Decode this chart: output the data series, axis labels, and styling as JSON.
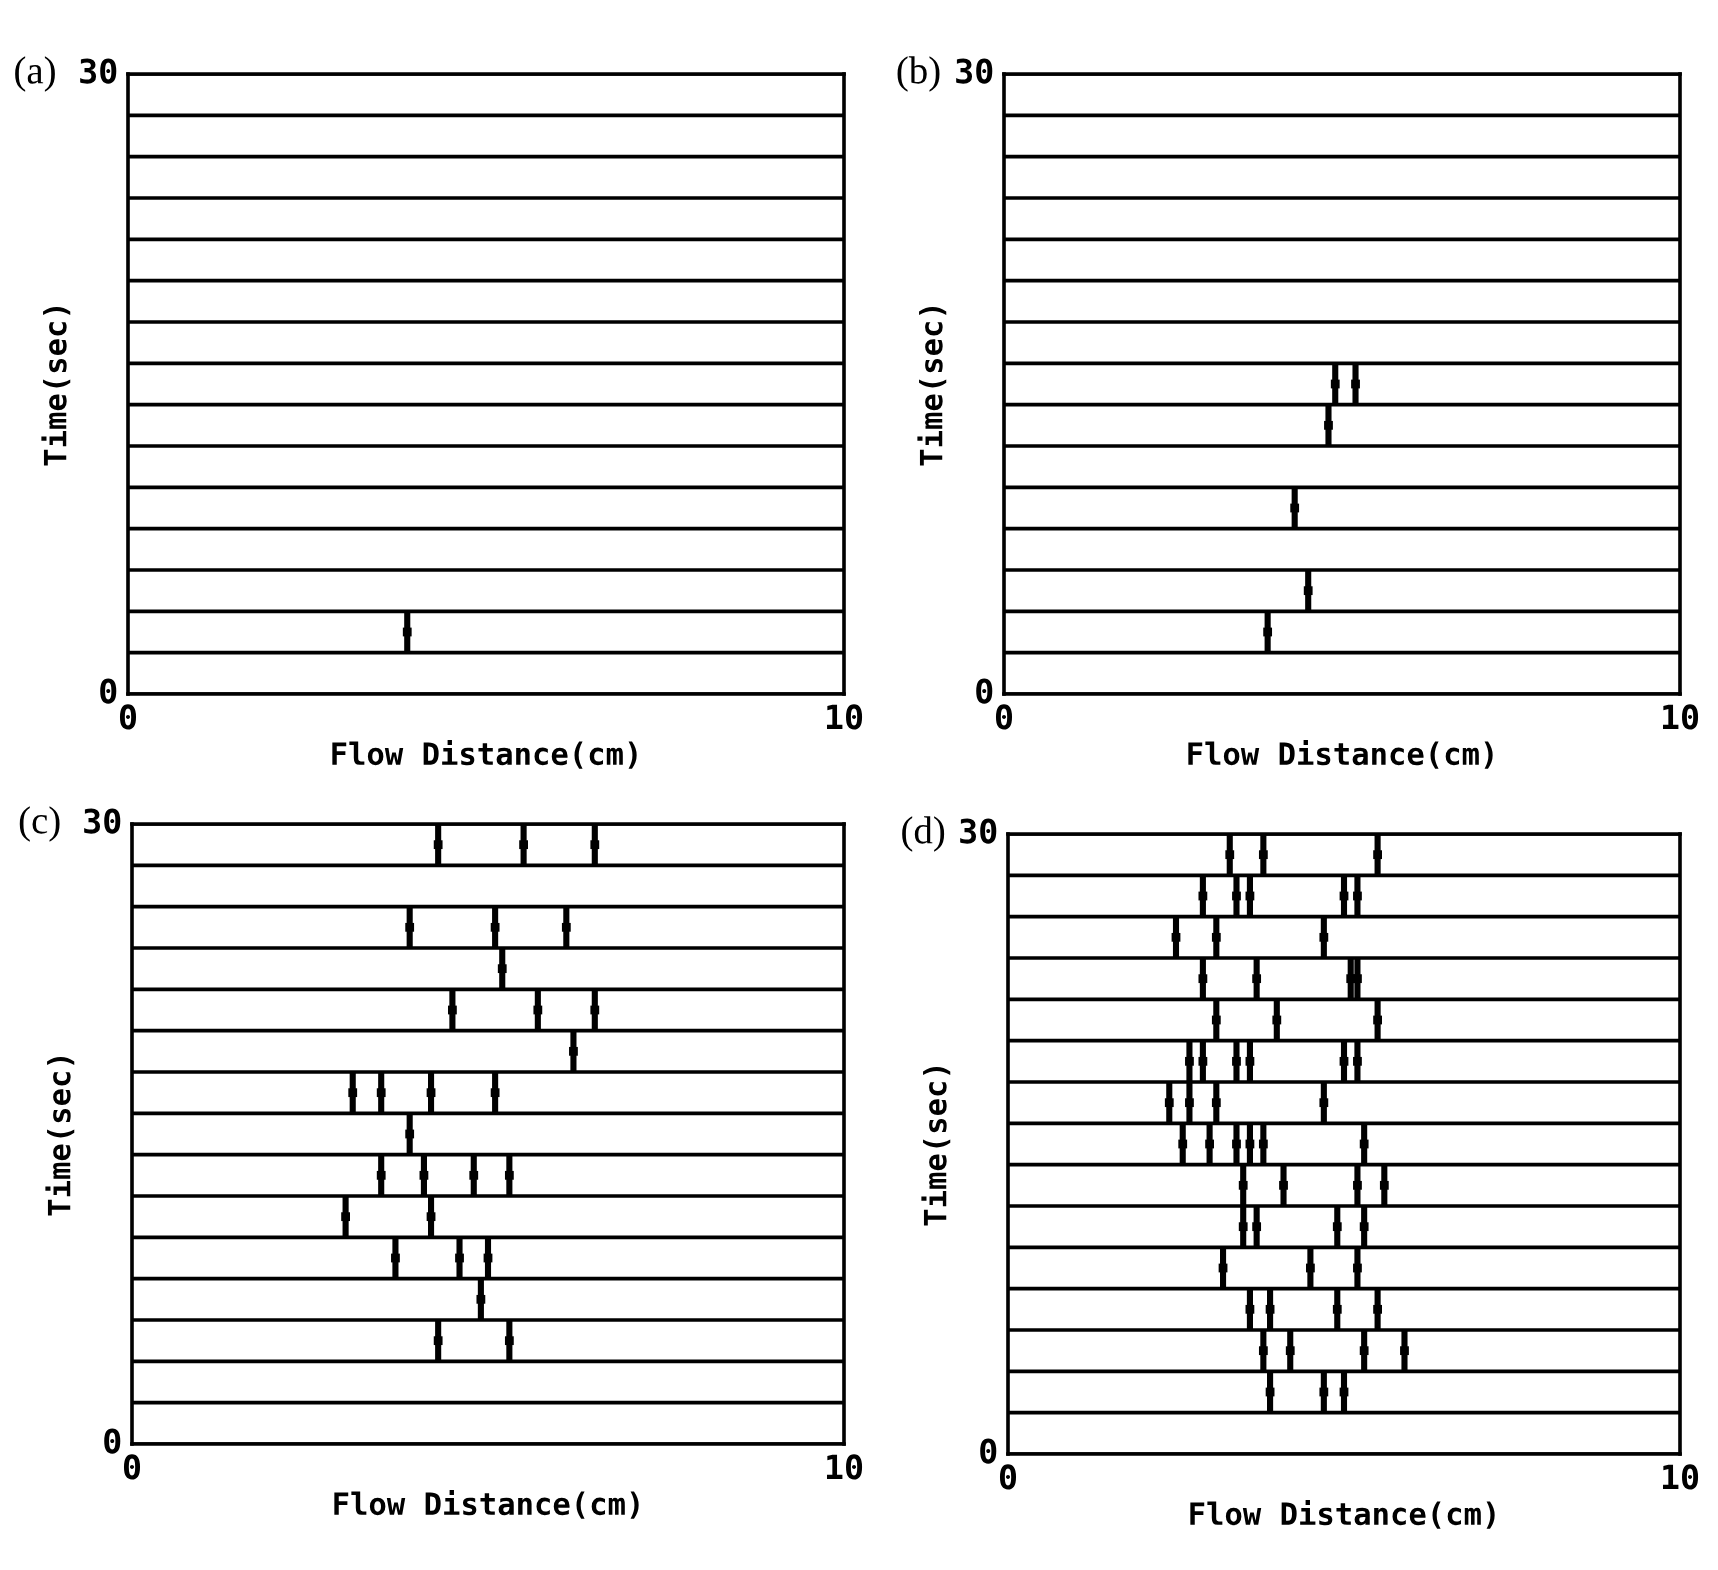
{
  "chart_data": [
    {
      "type": "scatter",
      "title": "(a)",
      "xlabel": "Flow Distance(cm)",
      "ylabel": "Time(sec)",
      "xlim": [
        0,
        10
      ],
      "xticks": [
        0,
        10
      ],
      "ylim": [
        0,
        30
      ],
      "yticks": [
        0,
        {
          "value": 2,
          "label": null
        },
        {
          "value": 4,
          "label": null
        },
        {
          "value": 6,
          "label": null
        },
        {
          "value": 8,
          "label": null
        },
        {
          "value": 10,
          "label": null
        },
        {
          "value": 12,
          "label": null
        },
        {
          "value": 14,
          "label": null
        },
        {
          "value": 16,
          "label": null
        },
        {
          "value": 18,
          "label": null
        },
        {
          "value": 20,
          "label": null
        },
        {
          "value": 22,
          "label": null
        },
        {
          "value": 24,
          "label": null
        },
        {
          "value": 26,
          "label": null
        },
        {
          "value": 28,
          "label": null
        },
        30
      ],
      "grid": "y",
      "marker": "square",
      "series": [
        {
          "color": "#000000",
          "x": [
            3.9
          ],
          "values": [
            3
          ],
          "errors": [
            1
          ]
        }
      ]
    },
    {
      "type": "scatter",
      "title": "(b)",
      "xlabel": "Flow Distance(cm)",
      "ylabel": "Time(sec)",
      "xlim": [
        0,
        10
      ],
      "xticks": [
        0,
        10
      ],
      "ylim": [
        0,
        30
      ],
      "yticks": [
        0,
        {
          "value": 2,
          "label": null
        },
        {
          "value": 4,
          "label": null
        },
        {
          "value": 6,
          "label": null
        },
        {
          "value": 8,
          "label": null
        },
        {
          "value": 10,
          "label": null
        },
        {
          "value": 12,
          "label": null
        },
        {
          "value": 14,
          "label": null
        },
        {
          "value": 16,
          "label": null
        },
        {
          "value": 18,
          "label": null
        },
        {
          "value": 20,
          "label": null
        },
        {
          "value": 22,
          "label": null
        },
        {
          "value": 24,
          "label": null
        },
        {
          "value": 26,
          "label": null
        },
        {
          "value": 28,
          "label": null
        },
        30
      ],
      "grid": "y",
      "marker": "square",
      "series": [
        {
          "color": "#000000",
          "x": [
            3.9,
            4.5,
            4.3,
            4.8,
            4.9,
            5.2
          ],
          "values": [
            3,
            5,
            9,
            13,
            15,
            15
          ],
          "errors": [
            1,
            1,
            1,
            1,
            1,
            1
          ]
        }
      ]
    },
    {
      "type": "scatter",
      "title": "(c)",
      "xlabel": "Flow Distance(cm)",
      "ylabel": "Time(sec)",
      "xlim": [
        0,
        10
      ],
      "xticks": [
        0,
        10
      ],
      "ylim": [
        0,
        30
      ],
      "yticks": [
        0,
        {
          "value": 2,
          "label": null
        },
        {
          "value": 4,
          "label": null
        },
        {
          "value": 6,
          "label": null
        },
        {
          "value": 8,
          "label": null
        },
        {
          "value": 10,
          "label": null
        },
        {
          "value": 12,
          "label": null
        },
        {
          "value": 14,
          "label": null
        },
        {
          "value": 16,
          "label": null
        },
        {
          "value": 18,
          "label": null
        },
        {
          "value": 20,
          "label": null
        },
        {
          "value": 22,
          "label": null
        },
        {
          "value": 24,
          "label": null
        },
        {
          "value": 26,
          "label": null
        },
        {
          "value": 28,
          "label": null
        },
        30
      ],
      "grid": "y",
      "marker": "square",
      "series": [
        {
          "color": "#000000",
          "x": [
            4.3,
            5.5,
            6.5,
            3.9,
            5.1,
            6.1,
            5.2,
            4.5,
            5.7,
            6.5,
            6.2,
            3.1,
            3.5,
            4.2,
            5.1,
            3.9,
            3.5,
            4.1,
            4.8,
            5.3,
            3.0,
            4.2,
            3.7,
            4.6,
            5.0,
            4.9,
            4.3,
            5.3
          ],
          "values": [
            29,
            29,
            29,
            25,
            25,
            25,
            23,
            21,
            21,
            21,
            19,
            17,
            17,
            17,
            17,
            15,
            13,
            13,
            13,
            13,
            11,
            11,
            9,
            9,
            9,
            7,
            5,
            5
          ],
          "errors": [
            1,
            1,
            1,
            1,
            1,
            1,
            1,
            1,
            1,
            1,
            1,
            1,
            1,
            1,
            1,
            1,
            1,
            1,
            1,
            1,
            1,
            1,
            1,
            1,
            1,
            1,
            1,
            1
          ]
        }
      ]
    },
    {
      "type": "scatter",
      "title": "(d)",
      "xlabel": "Flow Distance(cm)",
      "ylabel": "Time(sec)",
      "xlim": [
        0,
        10
      ],
      "xticks": [
        0,
        10
      ],
      "ylim": [
        0,
        30
      ],
      "yticks": [
        0,
        {
          "value": 2,
          "label": null
        },
        {
          "value": 4,
          "label": null
        },
        {
          "value": 6,
          "label": null
        },
        {
          "value": 8,
          "label": null
        },
        {
          "value": 10,
          "label": null
        },
        {
          "value": 12,
          "label": null
        },
        {
          "value": 14,
          "label": null
        },
        {
          "value": 16,
          "label": null
        },
        {
          "value": 18,
          "label": null
        },
        {
          "value": 20,
          "label": null
        },
        {
          "value": 22,
          "label": null
        },
        {
          "value": 24,
          "label": null
        },
        {
          "value": 26,
          "label": null
        },
        {
          "value": 28,
          "label": null
        },
        30
      ],
      "grid": "y",
      "marker": "square",
      "series": [
        {
          "color": "#000000",
          "x": [
            3.3,
            3.8,
            5.5,
            2.9,
            3.4,
            3.6,
            5.0,
            5.2,
            2.5,
            3.1,
            4.7,
            2.9,
            3.7,
            5.1,
            5.2,
            3.1,
            4.0,
            5.5,
            2.7,
            2.9,
            3.4,
            3.6,
            5.0,
            5.2,
            2.4,
            2.7,
            3.1,
            4.7,
            2.6,
            3.0,
            3.4,
            3.6,
            3.8,
            5.3,
            3.5,
            4.1,
            5.2,
            5.6,
            3.5,
            3.7,
            4.9,
            5.3,
            3.2,
            4.5,
            5.2,
            3.6,
            3.9,
            4.9,
            5.5,
            3.8,
            4.2,
            5.3,
            5.9,
            3.9,
            4.7,
            5.0
          ],
          "values": [
            29,
            29,
            29,
            27,
            27,
            27,
            27,
            27,
            25,
            25,
            25,
            23,
            23,
            23,
            23,
            21,
            21,
            21,
            19,
            19,
            19,
            19,
            19,
            19,
            17,
            17,
            17,
            17,
            15,
            15,
            15,
            15,
            15,
            15,
            13,
            13,
            13,
            13,
            11,
            11,
            11,
            11,
            9,
            9,
            9,
            7,
            7,
            7,
            7,
            5,
            5,
            5,
            5,
            3,
            3,
            3
          ],
          "errors": [
            1,
            1,
            1,
            1,
            1,
            1,
            1,
            1,
            1,
            1,
            1,
            1,
            1,
            1,
            1,
            1,
            1,
            1,
            1,
            1,
            1,
            1,
            1,
            1,
            1,
            1,
            1,
            1,
            1,
            1,
            1,
            1,
            1,
            1,
            1,
            1,
            1,
            1,
            1,
            1,
            1,
            1,
            1,
            1,
            1,
            1,
            1,
            1,
            1,
            1,
            1,
            1,
            1,
            1,
            1,
            1
          ]
        }
      ]
    }
  ]
}
